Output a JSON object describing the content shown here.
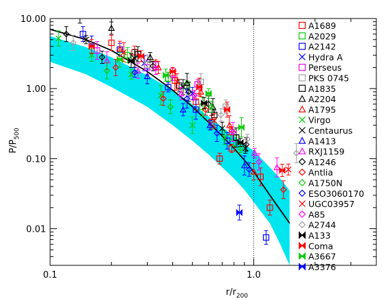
{
  "chart_data": {
    "type": "scatter",
    "xlabel": {
      "main": "r/r",
      "sub": "200"
    },
    "ylabel": {
      "main": "P/P",
      "sub": "500"
    },
    "x_scale": "log",
    "y_scale": "log",
    "xlim": [
      0.1,
      4.0
    ],
    "ylim": [
      0.003,
      10.0
    ],
    "x_tick_labels": [
      {
        "value": 0.1,
        "label": "0.1"
      },
      {
        "value": 1.0,
        "label": "1.0"
      }
    ],
    "y_tick_labels": [
      {
        "value": 0.01,
        "label": "0.01"
      },
      {
        "value": 0.1,
        "label": "0.10"
      },
      {
        "value": 1.0,
        "label": "1.00"
      },
      {
        "value": 10.0,
        "label": "10.00"
      }
    ],
    "reference_line_x": 1.0,
    "legend_position": "right",
    "band": {
      "color": "#00e5ee",
      "x": [
        0.1,
        0.15,
        0.2,
        0.3,
        0.4,
        0.5,
        0.6,
        0.7,
        0.8,
        0.9,
        1.0,
        1.2,
        1.35,
        1.5
      ],
      "upper": [
        5.6,
        3.9,
        2.8,
        1.55,
        0.95,
        0.6,
        0.4,
        0.28,
        0.21,
        0.16,
        0.13,
        0.075,
        0.052,
        0.035
      ],
      "lower": [
        2.4,
        1.6,
        1.05,
        0.55,
        0.3,
        0.18,
        0.115,
        0.075,
        0.052,
        0.036,
        0.024,
        0.012,
        0.006,
        0.003
      ]
    },
    "fit_line": {
      "color": "#000000",
      "x": [
        0.1,
        0.15,
        0.2,
        0.3,
        0.4,
        0.5,
        0.6,
        0.7,
        0.8,
        0.9,
        1.0,
        1.2,
        1.5
      ],
      "y": [
        7.0,
        5.0,
        3.5,
        1.75,
        0.95,
        0.55,
        0.33,
        0.21,
        0.14,
        0.095,
        0.065,
        0.03,
        0.012
      ]
    },
    "series": [
      {
        "name": "A1689",
        "color": "#ff0000",
        "marker": "square",
        "points": [
          [
            0.2,
            4.5
          ],
          [
            0.26,
            3.3
          ],
          [
            0.33,
            2.2
          ],
          [
            0.41,
            1.3
          ],
          [
            0.52,
            0.65
          ],
          [
            0.62,
            0.33
          ],
          [
            0.68,
            0.1
          ],
          [
            0.78,
            0.14
          ],
          [
            1.08,
            0.055
          ],
          [
            1.2,
            0.02
          ]
        ]
      },
      {
        "name": "A2029",
        "color": "#00cc00",
        "marker": "square",
        "points": [
          [
            0.24,
            3.0
          ],
          [
            0.38,
            1.4
          ],
          [
            0.47,
            1.1
          ],
          [
            0.56,
            0.55
          ],
          [
            0.8,
            0.2
          ]
        ]
      },
      {
        "name": "A2142",
        "color": "#0000ff",
        "marker": "square",
        "points": [
          [
            0.145,
            6.0
          ],
          [
            0.22,
            3.6
          ],
          [
            0.38,
            1.05
          ],
          [
            0.52,
            0.5
          ],
          [
            0.74,
            0.18
          ],
          [
            1.15,
            0.0075
          ]
        ]
      },
      {
        "name": "Hydra A",
        "color": "#0000ff",
        "marker": "x",
        "points": [
          [
            0.16,
            4.2
          ],
          [
            0.29,
            2.3
          ],
          [
            0.5,
            0.85
          ]
        ]
      },
      {
        "name": "Perseus",
        "color": "#ff00ff",
        "marker": "square",
        "points": [
          [
            0.17,
            3.5
          ],
          [
            0.3,
            2.0
          ],
          [
            0.4,
            1.6
          ],
          [
            0.53,
            1.15
          ]
        ]
      },
      {
        "name": "PKS 0745",
        "color": "#a0a0a0",
        "marker": "square",
        "points": [
          [
            0.3,
            2.2
          ],
          [
            0.55,
            1.25
          ],
          [
            0.73,
            0.55
          ]
        ]
      },
      {
        "name": "A1835",
        "color": "#000000",
        "marker": "square",
        "points": [
          [
            0.27,
            3.1
          ],
          [
            0.43,
            1.1
          ],
          [
            0.64,
            0.42
          ],
          [
            0.82,
            0.2
          ]
        ]
      },
      {
        "name": "A2204",
        "color": "#000000",
        "marker": "triangle",
        "points": [
          [
            0.14,
            11.0
          ],
          [
            0.2,
            7.3
          ],
          [
            0.31,
            2.8
          ],
          [
            0.47,
            1.2
          ],
          [
            0.63,
            0.55
          ]
        ]
      },
      {
        "name": "A1795",
        "color": "#ff0000",
        "marker": "triangle",
        "points": [
          [
            0.22,
            3.7
          ],
          [
            0.34,
            2.0
          ],
          [
            0.55,
            0.9
          ],
          [
            0.76,
            0.3
          ],
          [
            1.0,
            0.065
          ]
        ]
      },
      {
        "name": "Virgo",
        "color": "#00cc00",
        "marker": "x",
        "points": [
          [
            0.11,
            5.2
          ],
          [
            0.16,
            3.0
          ],
          [
            0.25,
            1.6
          ],
          [
            0.35,
            0.8
          ],
          [
            0.5,
            0.3
          ],
          [
            0.72,
            0.2
          ]
        ]
      },
      {
        "name": "Centaurus",
        "color": "#000000",
        "marker": "x",
        "points": [
          [
            0.15,
            5.0
          ],
          [
            0.26,
            2.7
          ],
          [
            0.45,
            1.05
          ],
          [
            0.7,
            0.27
          ],
          [
            0.91,
            0.14
          ]
        ]
      },
      {
        "name": "A1413",
        "color": "#0000ff",
        "marker": "triangle",
        "points": [
          [
            0.3,
            1.5
          ],
          [
            0.45,
            0.5
          ],
          [
            0.61,
            0.3
          ],
          [
            0.9,
            0.08
          ]
        ]
      },
      {
        "name": "RXJ1159",
        "color": "#ff00ff",
        "marker": "triangle",
        "points": [
          [
            0.19,
            2.5
          ],
          [
            0.27,
            1.8
          ],
          [
            0.44,
            0.85
          ],
          [
            1.01,
            0.12
          ],
          [
            1.3,
            0.075
          ]
        ]
      },
      {
        "name": "A1246",
        "color": "#000000",
        "marker": "diamond",
        "points": [
          [
            0.12,
            6.0
          ],
          [
            0.18,
            2.8
          ],
          [
            0.32,
            2.1
          ],
          [
            0.48,
            0.9
          ],
          [
            0.6,
            0.6
          ],
          [
            0.92,
            0.16
          ]
        ]
      },
      {
        "name": "Antlia",
        "color": "#ff0000",
        "marker": "diamond",
        "points": [
          [
            0.21,
            2.0
          ],
          [
            0.36,
            0.72
          ],
          [
            0.58,
            0.5
          ],
          [
            0.78,
            0.25
          ],
          [
            1.4,
            0.036
          ]
        ]
      },
      {
        "name": "A1750N",
        "color": "#00cc00",
        "marker": "diamond",
        "points": [
          [
            0.19,
            1.8
          ],
          [
            0.39,
            0.55
          ],
          [
            0.62,
            0.55
          ],
          [
            0.86,
            0.14
          ]
        ]
      },
      {
        "name": "ESO3060170",
        "color": "#0000ff",
        "marker": "diamond",
        "points": [
          [
            0.26,
            1.7
          ],
          [
            0.47,
            0.72
          ],
          [
            0.66,
            0.23
          ],
          [
            0.95,
            0.07
          ]
        ]
      },
      {
        "name": "UGC03957",
        "color": "#ff0000",
        "marker": "x",
        "points": [
          [
            0.23,
            3.3
          ],
          [
            0.42,
            1.25
          ],
          [
            0.64,
            0.35
          ],
          [
            1.48,
            0.07
          ]
        ]
      },
      {
        "name": "A85",
        "color": "#ff00ff",
        "marker": "diamond",
        "points": [
          [
            0.33,
            1.95
          ],
          [
            0.51,
            0.8
          ],
          [
            0.79,
            0.24
          ],
          [
            1.06,
            0.09
          ]
        ]
      },
      {
        "name": "A2744",
        "color": "#a0a0a0",
        "marker": "diamond",
        "points": [
          [
            0.13,
            4.5
          ],
          [
            0.69,
            0.42
          ],
          [
            0.93,
            0.19
          ],
          [
            1.62,
            0.12
          ]
        ]
      },
      {
        "name": "A133",
        "color": "#000000",
        "marker": "bowtie",
        "points": [
          [
            0.25,
            2.5
          ],
          [
            0.57,
            0.62
          ],
          [
            0.86,
            0.17
          ]
        ]
      },
      {
        "name": "Coma",
        "color": "#ff0000",
        "marker": "bowtie",
        "points": [
          [
            0.16,
            4.0
          ],
          [
            0.28,
            2.9
          ],
          [
            0.4,
            1.75
          ],
          [
            0.54,
            1.05
          ],
          [
            0.74,
            0.5
          ],
          [
            1.38,
            0.068
          ]
        ]
      },
      {
        "name": "A3667",
        "color": "#00cc00",
        "marker": "bowtie",
        "points": [
          [
            0.22,
            2.6
          ],
          [
            0.37,
            1.55
          ],
          [
            0.6,
            0.85
          ],
          [
            0.87,
            0.28
          ]
        ]
      },
      {
        "name": "A3376",
        "color": "#0000ff",
        "marker": "bowtie",
        "points": [
          [
            0.85,
            0.017
          ]
        ]
      }
    ]
  }
}
